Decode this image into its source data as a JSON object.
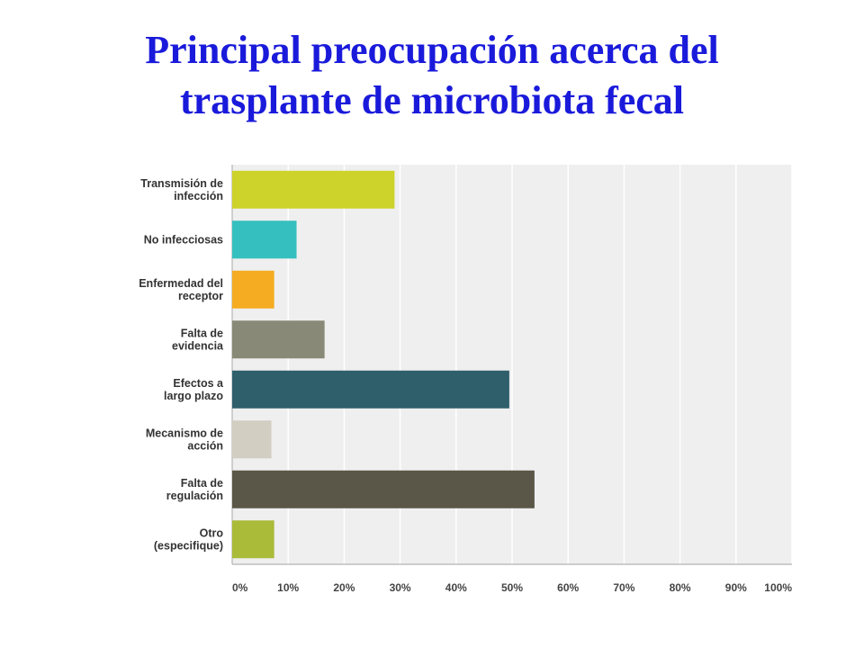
{
  "title": {
    "line1": "Principal preocupación acerca del",
    "line2": "trasplante de microbiota fecal"
  },
  "chart_data": {
    "type": "bar",
    "orientation": "horizontal",
    "categories": [
      [
        "Transmisión de",
        "infección"
      ],
      [
        "No infecciosas"
      ],
      [
        "Enfermedad del",
        "receptor"
      ],
      [
        "Falta de",
        "evidencia"
      ],
      [
        "Efectos a",
        "largo plazo"
      ],
      [
        "Mecanismo de",
        "acción"
      ],
      [
        "Falta de",
        "regulación"
      ],
      [
        "Otro",
        "(especifique)"
      ]
    ],
    "values": [
      29,
      11.5,
      7.5,
      16.5,
      49.5,
      7,
      54,
      7.5
    ],
    "colors": [
      "#cdd32a",
      "#35bfbf",
      "#f5ac22",
      "#898977",
      "#2e5f6b",
      "#d2cec2",
      "#5a5748",
      "#a9bb38"
    ],
    "x_ticks": [
      "0%",
      "10%",
      "20%",
      "30%",
      "40%",
      "50%",
      "60%",
      "70%",
      "80%",
      "90%",
      "100%"
    ],
    "xlim": [
      0,
      100
    ],
    "grid": true,
    "background": "#efefef",
    "gridline_color": "#ffffff"
  }
}
